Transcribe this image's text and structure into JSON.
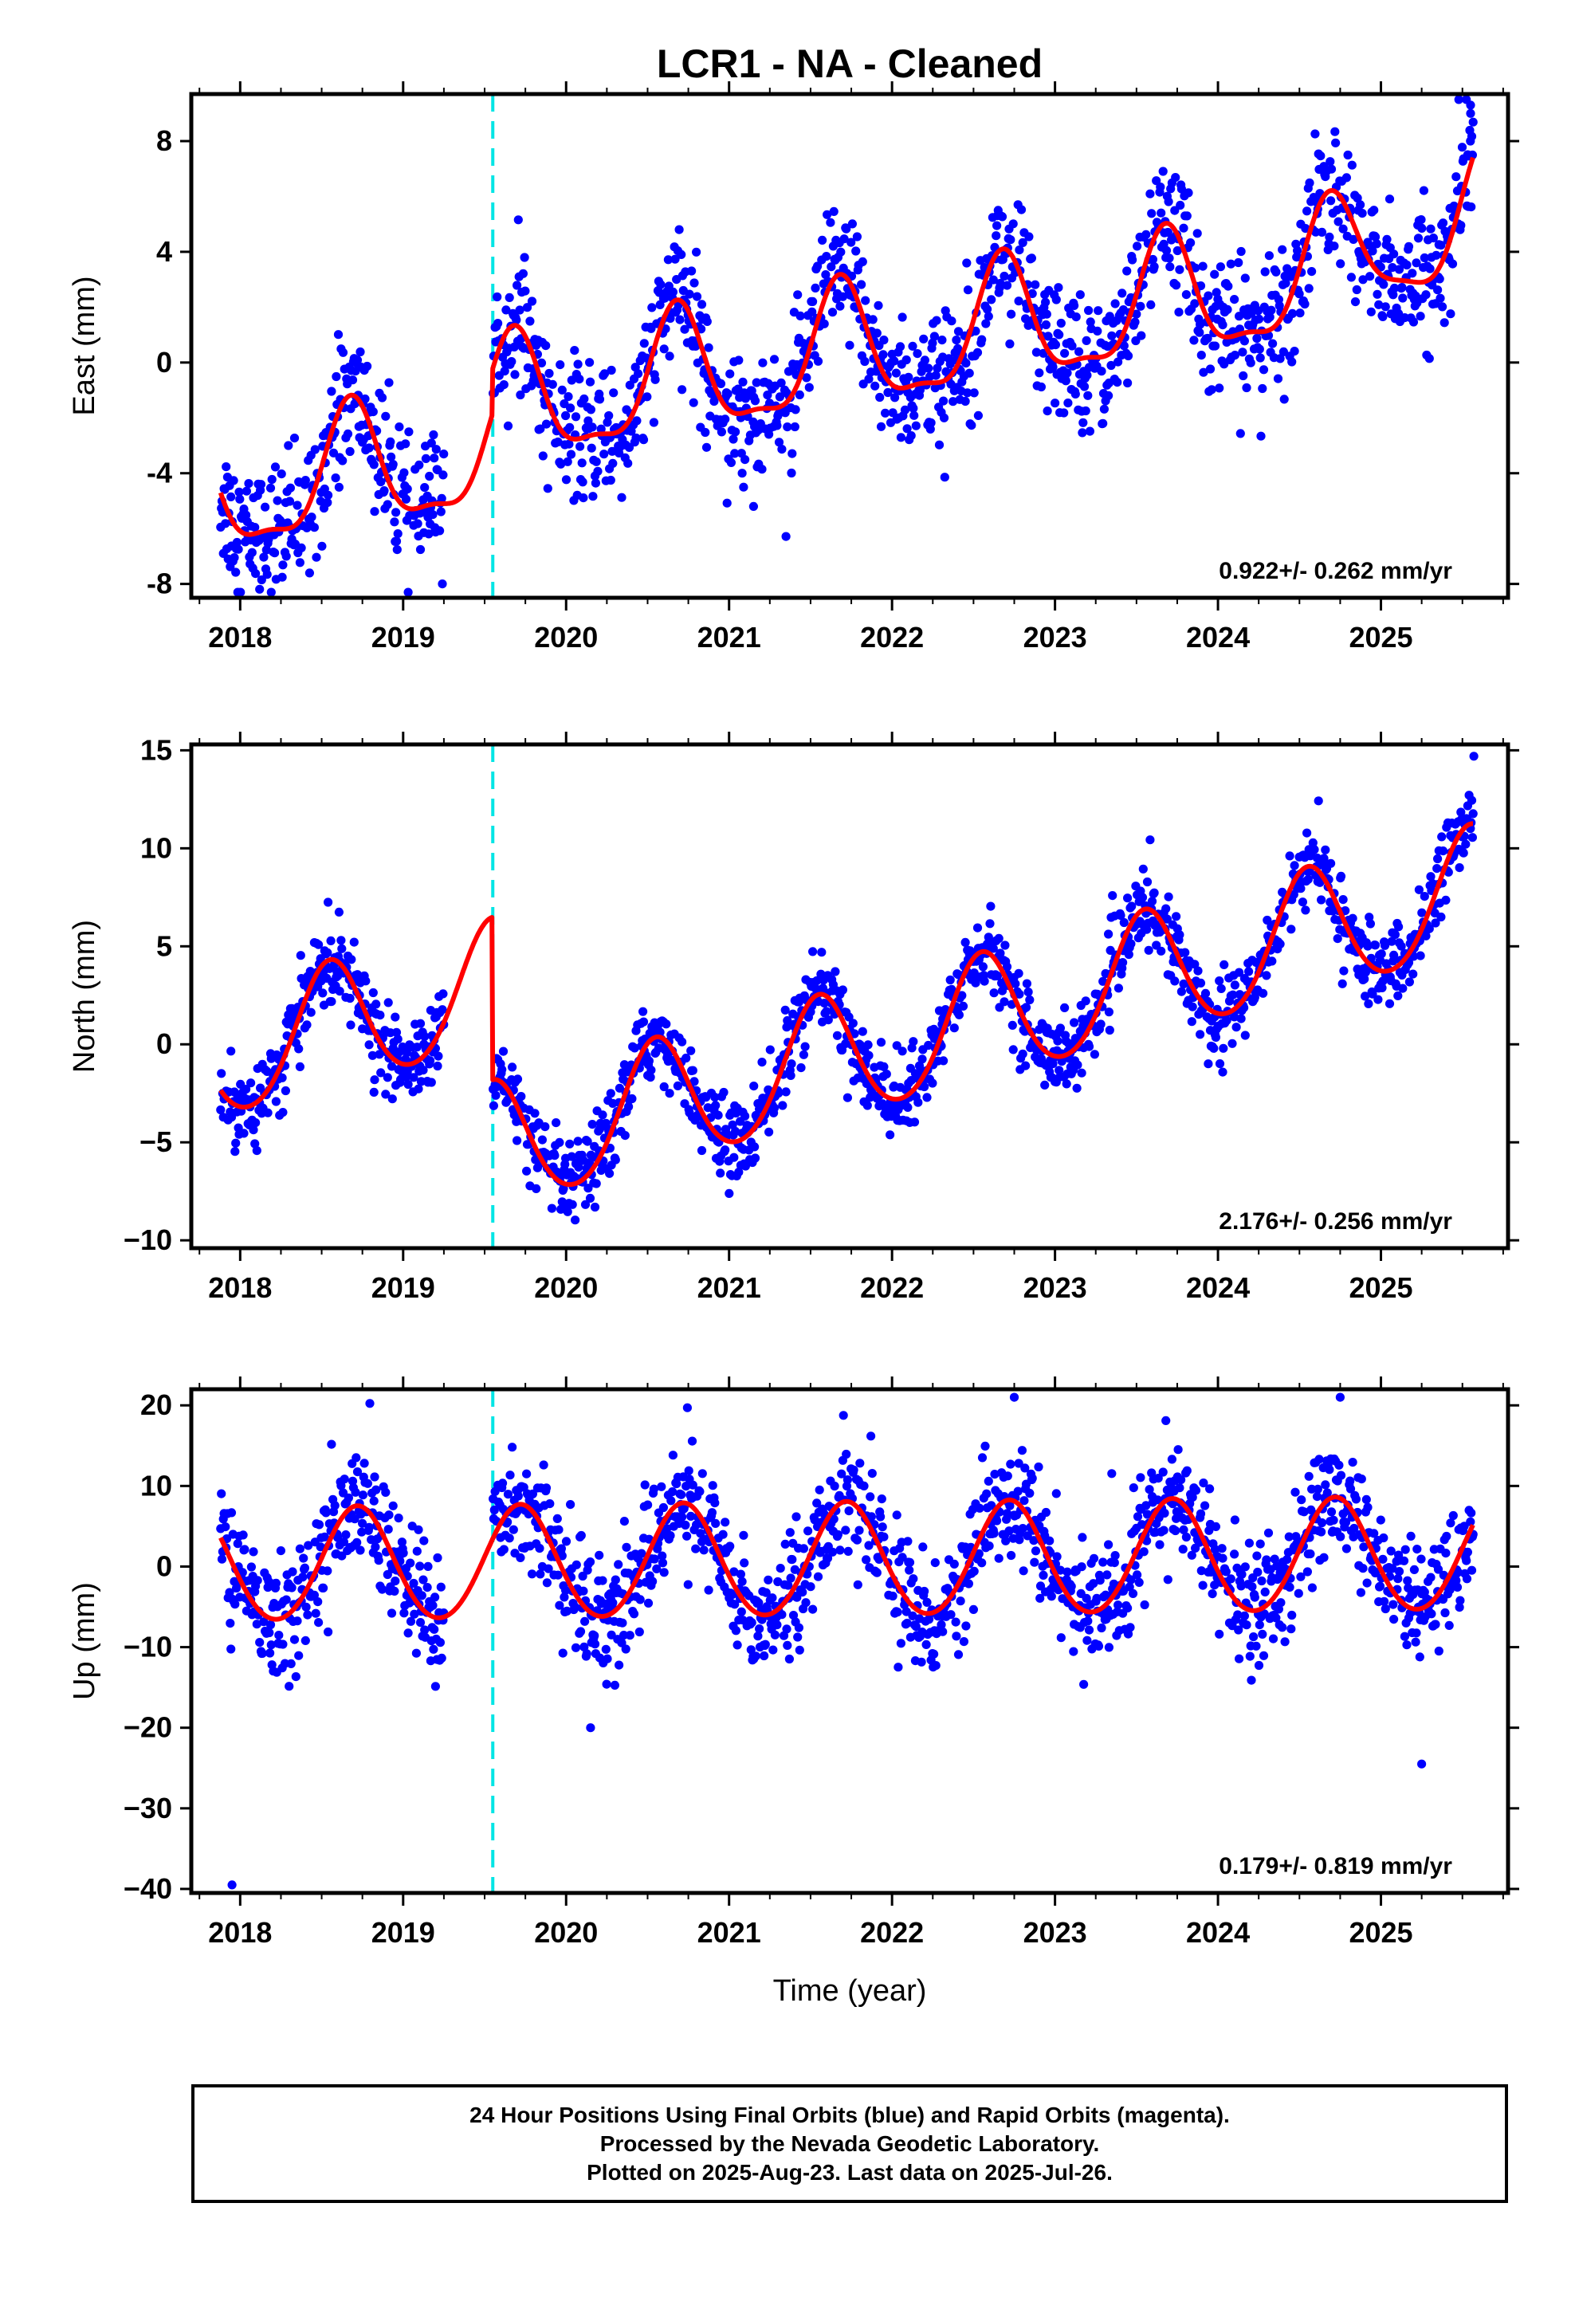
{
  "title": "LCR1  - NA - Cleaned",
  "xlabel": "Time (year)",
  "footer": {
    "line1": "24 Hour Positions Using Final Orbits (blue) and Rapid Orbits (magenta).",
    "line2": "Processed by the Nevada Geodetic Laboratory.",
    "line3": "Plotted on 2025-Aug-23. Last data on 2025-Jul-26."
  },
  "colors": {
    "points": "#0000ff",
    "fit": "#ff0000",
    "event_line": "#00e5e5",
    "frame": "#000000"
  },
  "chart_data": [
    {
      "type": "scatter",
      "name": "east",
      "ylabel": "East (mm)",
      "rate_label": "0.922+/- 0.262 mm/yr",
      "xlim": [
        2017.7,
        2025.78
      ],
      "ylim": [
        -8.5,
        9.7
      ],
      "yticks": [
        -8,
        -4,
        0,
        4,
        8
      ],
      "ytick_labels": [
        "-8",
        "-4",
        "0",
        "4",
        "8"
      ],
      "xticks": [
        2018,
        2019,
        2020,
        2021,
        2022,
        2023,
        2024,
        2025
      ],
      "event_x": 2019.55,
      "gap": [
        2019.25,
        2019.55
      ],
      "fit": {
        "base": -4.8,
        "rate": 0.922,
        "ann_amp": 2.2,
        "ann_peak": 0.68,
        "semi_amp": 0.7,
        "offset_at_event": 1.6,
        "extra": [
          [
            2025.0,
            1.2
          ],
          [
            2025.55,
            1.8
          ]
        ]
      },
      "noise_sd": 1.2,
      "outliers": [
        [
          2025.55,
          9.3
        ],
        [
          2025.55,
          9.0
        ],
        [
          2021.15,
          -5.2
        ]
      ]
    },
    {
      "type": "scatter",
      "name": "north",
      "ylabel": "North (mm)",
      "rate_label": "2.176+/- 0.256 mm/yr",
      "xlim": [
        2017.7,
        2025.78
      ],
      "ylim": [
        -10.4,
        15.3
      ],
      "yticks": [
        -10,
        -5,
        0,
        5,
        10,
        15
      ],
      "ytick_labels": [
        "−10",
        "−5",
        "0",
        "5",
        "10",
        "15"
      ],
      "xticks": [
        2018,
        2019,
        2020,
        2021,
        2022,
        2023,
        2024,
        2025
      ],
      "event_x": 2019.55,
      "gap": [
        2019.25,
        2019.55
      ],
      "fit": {
        "base": -0.6,
        "rate": 2.176,
        "ann_amp": 3.2,
        "ann_peak": 0.55,
        "semi_amp": 0.3,
        "offset_at_event": -8.3,
        "extra": []
      },
      "noise_sd": 1.0,
      "outliers": [
        [
          2025.57,
          14.7
        ]
      ]
    },
    {
      "type": "scatter",
      "name": "up",
      "ylabel": "Up (mm)",
      "rate_label": "0.179+/- 0.819 mm/yr",
      "xlim": [
        2017.7,
        2025.78
      ],
      "ylim": [
        -40.5,
        22
      ],
      "yticks": [
        -40,
        -30,
        -20,
        -10,
        0,
        10,
        20
      ],
      "ytick_labels": [
        "−40",
        "−30",
        "−20",
        "−10",
        "0",
        "10",
        "20"
      ],
      "xticks": [
        2018,
        2019,
        2020,
        2021,
        2022,
        2023,
        2024,
        2025
      ],
      "event_x": 2019.55,
      "gap": [
        2019.25,
        2019.55
      ],
      "fit": {
        "base": 0.0,
        "rate": 0.179,
        "ann_amp": 7.0,
        "ann_peak": 0.72,
        "semi_amp": 0.4,
        "offset_at_event": 0.0,
        "extra": []
      },
      "noise_sd": 3.6,
      "outliers": [
        [
          2017.95,
          -39.5
        ],
        [
          2025.25,
          -24.5
        ],
        [
          2020.15,
          -20.0
        ],
        [
          2022.75,
          21.0
        ],
        [
          2024.75,
          21.0
        ]
      ]
    }
  ]
}
